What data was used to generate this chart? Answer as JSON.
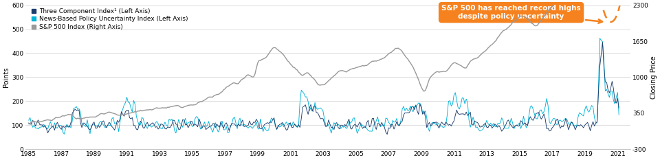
{
  "ylabel_left": "Points",
  "ylabel_right": "Closing Price",
  "ylim_left": [
    0,
    600
  ],
  "ylim_right": [
    -300,
    2300
  ],
  "yticks_left": [
    0,
    100,
    200,
    300,
    400,
    500,
    600
  ],
  "yticks_right": [
    -300,
    350,
    1000,
    1650,
    2300
  ],
  "xticks": [
    1985,
    1987,
    1989,
    1991,
    1993,
    1995,
    1997,
    1999,
    2001,
    2003,
    2005,
    2007,
    2009,
    2011,
    2013,
    2015,
    2017,
    2019,
    2021
  ],
  "xlim": [
    1984.8,
    2021.8
  ],
  "color_three_component": "#1b3d6e",
  "color_news_based": "#00b4d8",
  "color_sp500": "#999999",
  "annotation_text": "S&P 500 has reached record highs\ndespite policy uncertainty",
  "annotation_box_color": "#f5821f",
  "legend_entries": [
    "Three Component Index¹ (Left Axis)",
    "News-Based Policy Uncertainty Index (Left Axis)",
    "S&P 500 Index (Right Axis)"
  ],
  "background_color": "#ffffff",
  "grid_color": "#d0d0d0"
}
